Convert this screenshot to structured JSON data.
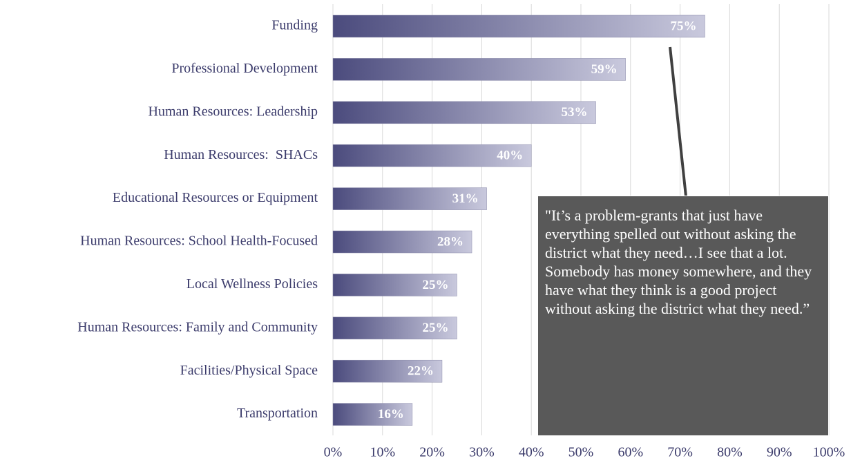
{
  "chart_data": {
    "type": "barh",
    "categories": [
      "Funding",
      "Professional Development",
      "Human Resources: Leadership",
      "Human Resources:  SHACs",
      "Educational Resources or Equipment",
      "Human Resources: School Health-Focused",
      "Local Wellness Policies",
      "Human Resources: Family and Community",
      "Facilities/Physical Space",
      "Transportation"
    ],
    "values": [
      75,
      59,
      53,
      40,
      31,
      28,
      25,
      25,
      22,
      16
    ],
    "value_labels": [
      "75%",
      "59%",
      "53%",
      "40%",
      "31%",
      "28%",
      "25%",
      "25%",
      "22%",
      "16%"
    ],
    "colors": [
      "#4b4b7d",
      "#c9c9dd"
    ],
    "xlim": [
      0,
      100
    ],
    "xticks": [
      {
        "value": 0,
        "label": "0%"
      },
      {
        "value": 10,
        "label": "10%"
      },
      {
        "value": 20,
        "label": "20%"
      },
      {
        "value": 30,
        "label": "30%"
      },
      {
        "value": 40,
        "label": "40%"
      },
      {
        "value": 50,
        "label": "50%"
      },
      {
        "value": 60,
        "label": "60%"
      },
      {
        "value": 70,
        "label": "70%"
      },
      {
        "value": 80,
        "label": "80%"
      },
      {
        "value": 90,
        "label": "90%"
      },
      {
        "value": 100,
        "label": "100%"
      }
    ],
    "grid": true,
    "annotation": "\"It’s a problem-grants that just have everything spelled out without asking the district what they need…I see that a lot. Somebody has money somewhere, and they have what they think is a good project without asking the district what they need.”"
  }
}
